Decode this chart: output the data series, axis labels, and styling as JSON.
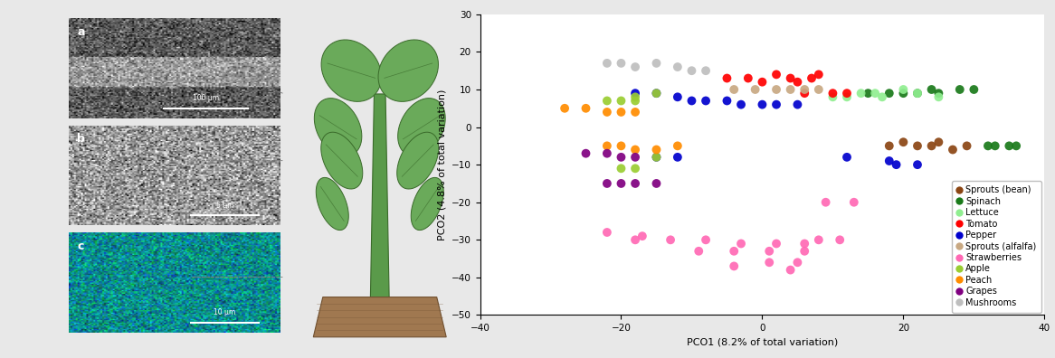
{
  "title": "",
  "xlabel": "PCO1 (8.2% of total variation)",
  "ylabel": "PCO2 (4.8% of total variation)",
  "xlim": [
    -40,
    40
  ],
  "ylim": [
    -50,
    30
  ],
  "xticks": [
    -40,
    -20,
    0,
    20,
    40
  ],
  "yticks": [
    -50,
    -40,
    -30,
    -20,
    -10,
    0,
    10,
    20,
    30
  ],
  "categories": {
    "Sprouts (bean)": {
      "color": "#8B4513",
      "points": [
        [
          18,
          -5
        ],
        [
          20,
          -4
        ],
        [
          22,
          -5
        ],
        [
          24,
          -5
        ],
        [
          25,
          -4
        ],
        [
          27,
          -6
        ],
        [
          29,
          -5
        ]
      ]
    },
    "Spinach": {
      "color": "#1a7a1a",
      "points": [
        [
          15,
          9
        ],
        [
          18,
          9
        ],
        [
          20,
          9
        ],
        [
          22,
          9
        ],
        [
          24,
          10
        ],
        [
          25,
          9
        ],
        [
          28,
          10
        ],
        [
          30,
          10
        ],
        [
          32,
          -5
        ],
        [
          33,
          -5
        ],
        [
          35,
          -5
        ],
        [
          36,
          -5
        ]
      ]
    },
    "Lettuce": {
      "color": "#90EE90",
      "points": [
        [
          10,
          8
        ],
        [
          12,
          8
        ],
        [
          14,
          9
        ],
        [
          16,
          9
        ],
        [
          17,
          8
        ],
        [
          20,
          10
        ],
        [
          22,
          9
        ],
        [
          25,
          8
        ]
      ]
    },
    "Tomato": {
      "color": "#FF0000",
      "points": [
        [
          -5,
          13
        ],
        [
          -2,
          13
        ],
        [
          0,
          12
        ],
        [
          2,
          14
        ],
        [
          4,
          13
        ],
        [
          5,
          12
        ],
        [
          7,
          13
        ],
        [
          8,
          14
        ],
        [
          10,
          9
        ],
        [
          12,
          9
        ],
        [
          6,
          9
        ]
      ]
    },
    "Pepper": {
      "color": "#0000CD",
      "points": [
        [
          -18,
          9
        ],
        [
          -15,
          9
        ],
        [
          -12,
          8
        ],
        [
          -10,
          7
        ],
        [
          -8,
          7
        ],
        [
          -5,
          7
        ],
        [
          -3,
          6
        ],
        [
          0,
          6
        ],
        [
          2,
          6
        ],
        [
          5,
          6
        ],
        [
          -12,
          -8
        ],
        [
          -15,
          -8
        ],
        [
          12,
          -8
        ],
        [
          18,
          -9
        ],
        [
          19,
          -10
        ],
        [
          22,
          -10
        ]
      ]
    },
    "Sprouts (alfalfa)": {
      "color": "#C8A882",
      "points": [
        [
          -4,
          10
        ],
        [
          -1,
          10
        ],
        [
          2,
          10
        ],
        [
          4,
          10
        ],
        [
          6,
          10
        ],
        [
          8,
          10
        ]
      ]
    },
    "Strawberries": {
      "color": "#FF69B4",
      "points": [
        [
          -22,
          -28
        ],
        [
          -18,
          -30
        ],
        [
          -13,
          -30
        ],
        [
          -8,
          -30
        ],
        [
          -3,
          -31
        ],
        [
          2,
          -31
        ],
        [
          6,
          -31
        ],
        [
          1,
          -33
        ],
        [
          6,
          -33
        ],
        [
          -4,
          -33
        ],
        [
          -9,
          -33
        ],
        [
          1,
          -36
        ],
        [
          5,
          -36
        ],
        [
          -4,
          -37
        ],
        [
          4,
          -38
        ],
        [
          9,
          -20
        ],
        [
          13,
          -20
        ],
        [
          -17,
          -29
        ],
        [
          8,
          -30
        ],
        [
          11,
          -30
        ]
      ]
    },
    "Apple": {
      "color": "#9ACD32",
      "points": [
        [
          -22,
          7
        ],
        [
          -20,
          7
        ],
        [
          -18,
          7
        ],
        [
          -20,
          -11
        ],
        [
          -18,
          -11
        ],
        [
          -15,
          -8
        ],
        [
          -15,
          9
        ],
        [
          -18,
          8
        ]
      ]
    },
    "Peach": {
      "color": "#FF8C00",
      "points": [
        [
          -28,
          5
        ],
        [
          -25,
          5
        ],
        [
          -22,
          4
        ],
        [
          -20,
          4
        ],
        [
          -18,
          4
        ],
        [
          -22,
          -5
        ],
        [
          -20,
          -5
        ],
        [
          -18,
          -6
        ],
        [
          -15,
          -6
        ],
        [
          -12,
          -5
        ]
      ]
    },
    "Grapes": {
      "color": "#800080",
      "points": [
        [
          -25,
          -7
        ],
        [
          -22,
          -7
        ],
        [
          -20,
          -8
        ],
        [
          -18,
          -8
        ],
        [
          -22,
          -15
        ],
        [
          -20,
          -15
        ],
        [
          -18,
          -15
        ],
        [
          -15,
          -15
        ]
      ]
    },
    "Mushrooms": {
      "color": "#BEBEBE",
      "points": [
        [
          -22,
          17
        ],
        [
          -20,
          17
        ],
        [
          -18,
          16
        ],
        [
          -15,
          17
        ],
        [
          -12,
          16
        ],
        [
          -10,
          15
        ],
        [
          -8,
          15
        ]
      ]
    }
  },
  "background_color": "#ffffff",
  "marker_size": 50,
  "fig_bg": "#e8e8e8"
}
